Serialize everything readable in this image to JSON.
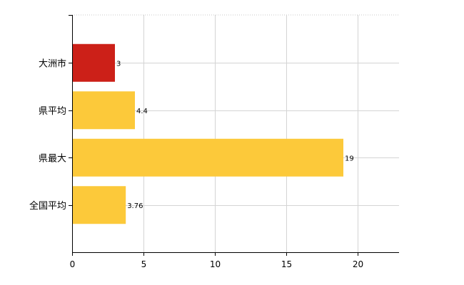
{
  "chart_data": {
    "type": "bar",
    "orientation": "horizontal",
    "categories": [
      "大洲市",
      "県平均",
      "県最大",
      "全国平均"
    ],
    "values": [
      3,
      4.4,
      19,
      3.76
    ],
    "value_labels": [
      "3",
      "4.4",
      "19",
      "3.76"
    ],
    "colors": [
      "#cc2018",
      "#fcc93a",
      "#fcc93a",
      "#fcc93a"
    ],
    "xlim": [
      0,
      22.9
    ],
    "xticks": [
      0,
      5,
      10,
      15,
      20
    ],
    "xtick_labels": [
      "0",
      "5",
      "10",
      "15",
      "20"
    ],
    "grid": true,
    "legend": false
  }
}
